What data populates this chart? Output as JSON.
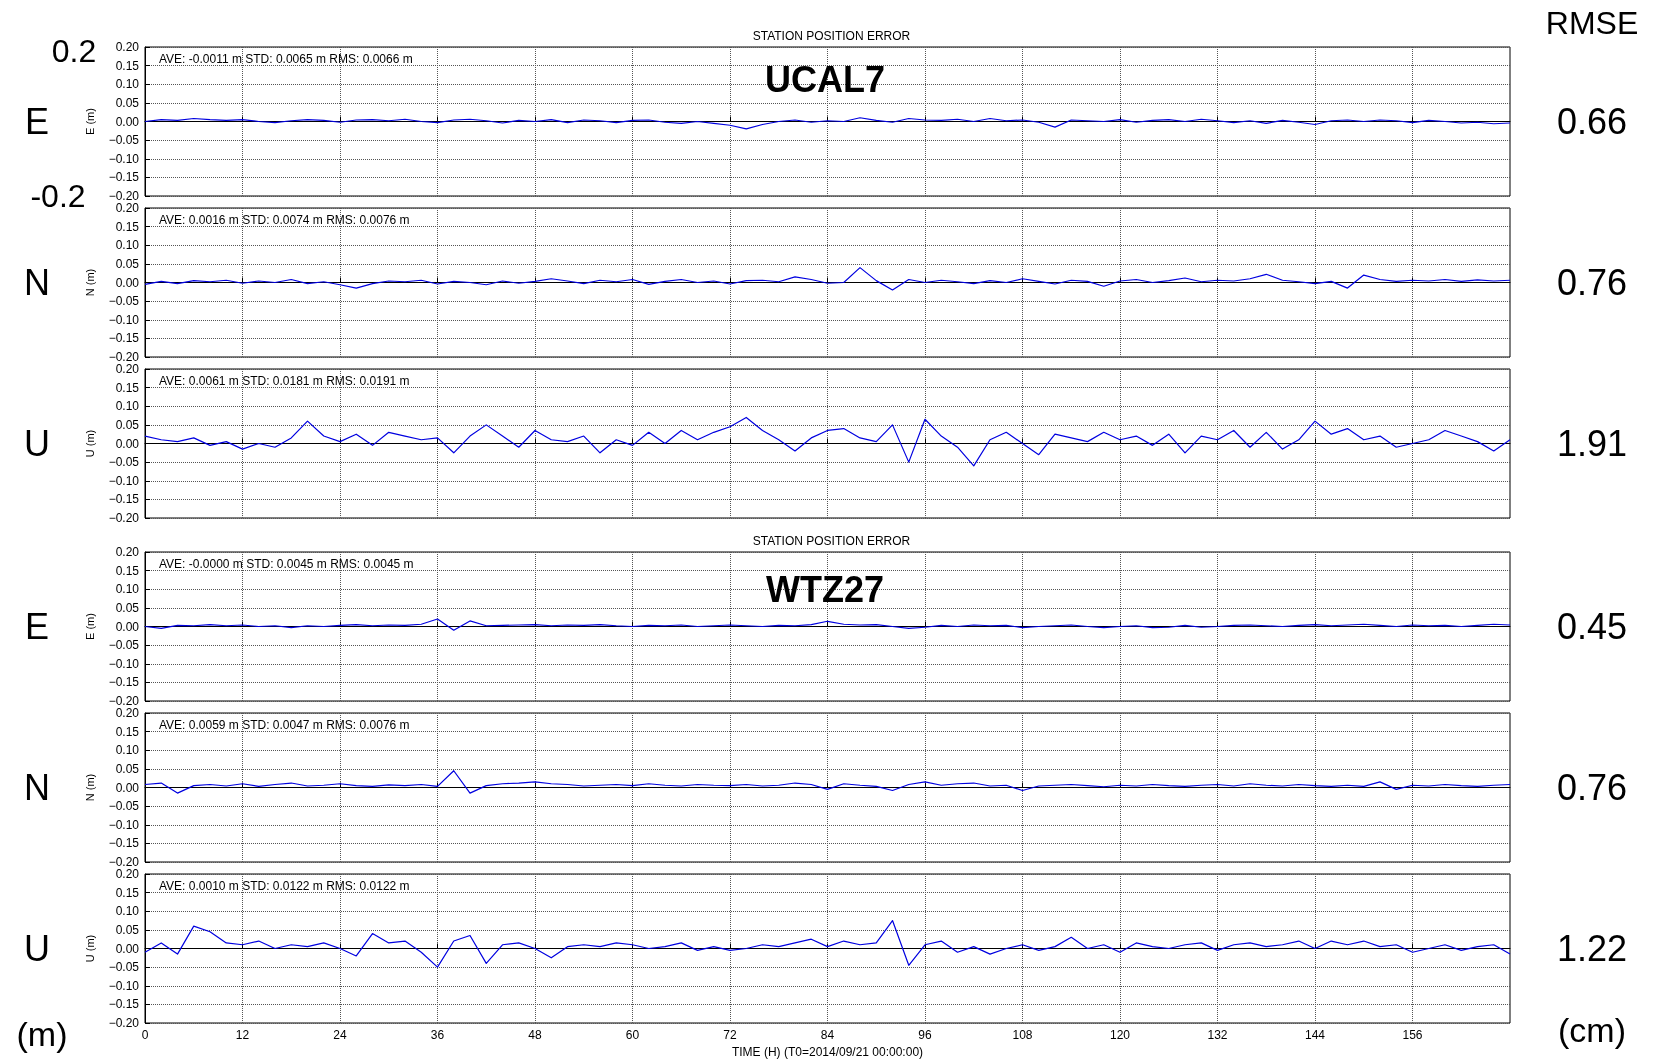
{
  "chart_data": [
    {
      "type": "line",
      "title": "STATION POSITION ERROR",
      "ylabel": "E (m)",
      "color": "#0000e0",
      "grid": true,
      "tick_labels": "y",
      "annotations": [
        "AVE: -0.0011 m STD: 0.0065 m RMS: 0.0066 m",
        "E",
        "0.66",
        "UCAL7",
        "RMSE",
        "0.2",
        "-0.2"
      ],
      "xlim": [
        0,
        168
      ],
      "xticks": [
        0,
        12,
        24,
        36,
        48,
        60,
        72,
        84,
        96,
        108,
        120,
        132,
        144,
        156
      ],
      "ylim": [
        -0.2,
        0.2
      ],
      "yticks": [
        {
          "value": -0.2,
          "label": "−0.20"
        },
        {
          "value": -0.15,
          "label": "−0.15"
        },
        {
          "value": -0.1,
          "label": "−0.10"
        },
        {
          "value": -0.05,
          "label": "−0.05"
        },
        {
          "value": 0,
          "label": "0.00"
        },
        {
          "value": 0.05,
          "label": "0.05"
        },
        {
          "value": 0.1,
          "label": "0.10"
        },
        {
          "value": 0.15,
          "label": "0.15"
        },
        {
          "value": 0.2,
          "label": "0.20"
        }
      ],
      "x": [
        0,
        2,
        4,
        6,
        8,
        10,
        12,
        14,
        16,
        18,
        20,
        22,
        24,
        26,
        28,
        30,
        32,
        34,
        36,
        38,
        40,
        42,
        44,
        46,
        48,
        50,
        52,
        54,
        56,
        58,
        60,
        62,
        64,
        66,
        68,
        70,
        72,
        74,
        76,
        78,
        80,
        82,
        84,
        86,
        88,
        90,
        92,
        94,
        96,
        98,
        100,
        102,
        104,
        106,
        108,
        110,
        112,
        114,
        116,
        118,
        120,
        122,
        124,
        126,
        128,
        130,
        132,
        134,
        136,
        138,
        140,
        142,
        144,
        146,
        148,
        150,
        152,
        154,
        156,
        158,
        160,
        162,
        164,
        166,
        168
      ],
      "values": [
        0.0,
        0.005,
        0.003,
        0.008,
        0.005,
        0.003,
        0.005,
        0.0,
        -0.003,
        0.002,
        0.005,
        0.003,
        -0.002,
        0.004,
        0.005,
        0.002,
        0.006,
        0.0,
        -0.003,
        0.004,
        0.006,
        0.002,
        -0.004,
        0.003,
        0.0,
        0.005,
        -0.003,
        0.004,
        0.002,
        -0.003,
        0.003,
        0.004,
        -0.002,
        -0.005,
        0.0,
        -0.005,
        -0.01,
        -0.02,
        -0.008,
        0.0,
        0.004,
        -0.002,
        0.002,
        0.0,
        0.01,
        0.003,
        -0.002,
        0.008,
        0.004,
        0.003,
        0.006,
        0.0,
        0.008,
        0.002,
        0.004,
        -0.002,
        -0.015,
        0.004,
        0.002,
        0.0,
        0.005,
        -0.002,
        0.003,
        0.005,
        0.0,
        0.006,
        0.002,
        -0.003,
        0.002,
        -0.005,
        0.003,
        -0.002,
        -0.008,
        0.002,
        0.004,
        0.0,
        0.004,
        0.002,
        -0.003,
        0.003,
        0.0,
        -0.004,
        -0.002,
        -0.006,
        -0.004
      ]
    },
    {
      "type": "line",
      "ylabel": "N (m)",
      "color": "#0000e0",
      "grid": true,
      "tick_labels": "y",
      "annotations": [
        "AVE: 0.0016 m STD: 0.0074 m RMS: 0.0076 m",
        "N",
        "0.76"
      ],
      "xlim": [
        0,
        168
      ],
      "xticks": [
        0,
        12,
        24,
        36,
        48,
        60,
        72,
        84,
        96,
        108,
        120,
        132,
        144,
        156
      ],
      "ylim": [
        -0.2,
        0.2
      ],
      "yticks": [
        {
          "value": -0.2,
          "label": "−0.20"
        },
        {
          "value": -0.15,
          "label": "−0.15"
        },
        {
          "value": -0.1,
          "label": "−0.10"
        },
        {
          "value": -0.05,
          "label": "−0.05"
        },
        {
          "value": 0,
          "label": "0.00"
        },
        {
          "value": 0.05,
          "label": "0.05"
        },
        {
          "value": 0.1,
          "label": "0.10"
        },
        {
          "value": 0.15,
          "label": "0.15"
        },
        {
          "value": 0.2,
          "label": "0.20"
        }
      ],
      "x": [
        0,
        2,
        4,
        6,
        8,
        10,
        12,
        14,
        16,
        18,
        20,
        22,
        24,
        26,
        28,
        30,
        32,
        34,
        36,
        38,
        40,
        42,
        44,
        46,
        48,
        50,
        52,
        54,
        56,
        58,
        60,
        62,
        64,
        66,
        68,
        70,
        72,
        74,
        76,
        78,
        80,
        82,
        84,
        86,
        88,
        90,
        92,
        94,
        96,
        98,
        100,
        102,
        104,
        106,
        108,
        110,
        112,
        114,
        116,
        118,
        120,
        122,
        124,
        126,
        128,
        130,
        132,
        134,
        136,
        138,
        140,
        142,
        144,
        146,
        148,
        150,
        152,
        154,
        156,
        158,
        160,
        162,
        164,
        166,
        168
      ],
      "values": [
        -0.005,
        0.003,
        -0.003,
        0.005,
        0.002,
        0.006,
        -0.002,
        0.004,
        0.0,
        0.008,
        -0.003,
        0.002,
        -0.006,
        -0.015,
        -0.003,
        0.004,
        0.002,
        0.006,
        -0.004,
        0.003,
        0.0,
        -0.006,
        0.004,
        -0.002,
        0.003,
        0.01,
        0.004,
        -0.003,
        0.006,
        0.002,
        0.008,
        -0.005,
        0.003,
        0.008,
        0.0,
        0.004,
        -0.004,
        0.005,
        0.006,
        0.002,
        0.015,
        0.008,
        -0.002,
        0.0,
        0.04,
        0.005,
        -0.02,
        0.008,
        0.0,
        0.006,
        0.002,
        -0.003,
        0.005,
        0.0,
        0.01,
        0.003,
        -0.004,
        0.006,
        0.003,
        -0.01,
        0.004,
        0.008,
        0.0,
        0.005,
        0.012,
        0.002,
        0.006,
        0.004,
        0.01,
        0.022,
        0.006,
        0.002,
        -0.003,
        0.003,
        -0.015,
        0.02,
        0.008,
        0.003,
        0.006,
        0.004,
        0.008,
        0.003,
        0.007,
        0.004,
        0.006
      ]
    },
    {
      "type": "line",
      "ylabel": "U (m)",
      "color": "#0000e0",
      "grid": true,
      "tick_labels": "y",
      "annotations": [
        "AVE: 0.0061 m STD: 0.0181 m RMS: 0.0191 m",
        "U",
        "1.91"
      ],
      "xlim": [
        0,
        168
      ],
      "xticks": [
        0,
        12,
        24,
        36,
        48,
        60,
        72,
        84,
        96,
        108,
        120,
        132,
        144,
        156
      ],
      "ylim": [
        -0.2,
        0.2
      ],
      "yticks": [
        {
          "value": -0.2,
          "label": "−0.20"
        },
        {
          "value": -0.15,
          "label": "−0.15"
        },
        {
          "value": -0.1,
          "label": "−0.10"
        },
        {
          "value": -0.05,
          "label": "−0.05"
        },
        {
          "value": 0,
          "label": "0.00"
        },
        {
          "value": 0.05,
          "label": "0.05"
        },
        {
          "value": 0.1,
          "label": "0.10"
        },
        {
          "value": 0.15,
          "label": "0.15"
        },
        {
          "value": 0.2,
          "label": "0.20"
        }
      ],
      "x": [
        0,
        2,
        4,
        6,
        8,
        10,
        12,
        14,
        16,
        18,
        20,
        22,
        24,
        26,
        28,
        30,
        32,
        34,
        36,
        38,
        40,
        42,
        44,
        46,
        48,
        50,
        52,
        54,
        56,
        58,
        60,
        62,
        64,
        66,
        68,
        70,
        72,
        74,
        76,
        78,
        80,
        82,
        84,
        86,
        88,
        90,
        92,
        94,
        96,
        98,
        100,
        102,
        104,
        106,
        108,
        110,
        112,
        114,
        116,
        118,
        120,
        122,
        124,
        126,
        128,
        130,
        132,
        134,
        136,
        138,
        140,
        142,
        144,
        146,
        148,
        150,
        152,
        154,
        156,
        158,
        160,
        162,
        164,
        166,
        168
      ],
      "values": [
        0.02,
        0.01,
        0.005,
        0.015,
        -0.005,
        0.005,
        -0.015,
        0.0,
        -0.01,
        0.015,
        0.06,
        0.02,
        0.005,
        0.025,
        -0.005,
        0.03,
        0.02,
        0.01,
        0.015,
        -0.025,
        0.02,
        0.05,
        0.02,
        -0.01,
        0.035,
        0.01,
        0.005,
        0.02,
        -0.025,
        0.01,
        -0.005,
        0.03,
        0.0,
        0.035,
        0.01,
        0.03,
        0.045,
        0.07,
        0.035,
        0.01,
        -0.02,
        0.015,
        0.035,
        0.04,
        0.015,
        0.005,
        0.05,
        -0.05,
        0.065,
        0.02,
        -0.01,
        -0.06,
        0.01,
        0.03,
        0.0,
        -0.03,
        0.025,
        0.015,
        0.005,
        0.03,
        0.01,
        0.02,
        -0.005,
        0.025,
        -0.025,
        0.02,
        0.01,
        0.035,
        -0.01,
        0.03,
        -0.015,
        0.01,
        0.06,
        0.025,
        0.04,
        0.01,
        0.02,
        -0.01,
        0.0,
        0.01,
        0.035,
        0.02,
        0.005,
        -0.02,
        0.01
      ]
    },
    {
      "type": "line",
      "title": "STATION POSITION ERROR",
      "ylabel": "E (m)",
      "color": "#0000e0",
      "grid": true,
      "tick_labels": "y",
      "annotations": [
        "AVE: -0.0000 m STD: 0.0045 m RMS: 0.0045 m",
        "E",
        "0.45",
        "WTZ27"
      ],
      "xlim": [
        0,
        168
      ],
      "xticks": [
        0,
        12,
        24,
        36,
        48,
        60,
        72,
        84,
        96,
        108,
        120,
        132,
        144,
        156
      ],
      "ylim": [
        -0.2,
        0.2
      ],
      "yticks": [
        {
          "value": -0.2,
          "label": "−0.20"
        },
        {
          "value": -0.15,
          "label": "−0.15"
        },
        {
          "value": -0.1,
          "label": "−0.10"
        },
        {
          "value": -0.05,
          "label": "−0.05"
        },
        {
          "value": 0,
          "label": "0.00"
        },
        {
          "value": 0.05,
          "label": "0.05"
        },
        {
          "value": 0.1,
          "label": "0.10"
        },
        {
          "value": 0.15,
          "label": "0.15"
        },
        {
          "value": 0.2,
          "label": "0.20"
        }
      ],
      "x": [
        0,
        2,
        4,
        6,
        8,
        10,
        12,
        14,
        16,
        18,
        20,
        22,
        24,
        26,
        28,
        30,
        32,
        34,
        36,
        38,
        40,
        42,
        44,
        46,
        48,
        50,
        52,
        54,
        56,
        58,
        60,
        62,
        64,
        66,
        68,
        70,
        72,
        74,
        76,
        78,
        80,
        82,
        84,
        86,
        88,
        90,
        92,
        94,
        96,
        98,
        100,
        102,
        104,
        106,
        108,
        110,
        112,
        114,
        116,
        118,
        120,
        122,
        124,
        126,
        128,
        130,
        132,
        134,
        136,
        138,
        140,
        142,
        144,
        146,
        148,
        150,
        152,
        154,
        156,
        158,
        160,
        162,
        164,
        166,
        168
      ],
      "values": [
        0.0,
        -0.005,
        0.003,
        0.002,
        0.005,
        0.002,
        0.004,
        0.0,
        0.002,
        -0.003,
        0.002,
        0.0,
        0.003,
        0.005,
        0.002,
        0.004,
        0.003,
        0.006,
        0.02,
        -0.01,
        0.015,
        0.002,
        0.003,
        0.004,
        0.005,
        0.002,
        0.004,
        0.003,
        0.005,
        0.002,
        0.0,
        0.003,
        0.002,
        0.004,
        0.0,
        0.002,
        0.004,
        0.002,
        0.0,
        0.003,
        0.002,
        0.005,
        0.014,
        0.006,
        0.004,
        0.005,
        0.0,
        -0.005,
        -0.002,
        0.003,
        0.0,
        0.004,
        0.002,
        0.003,
        -0.003,
        0.0,
        0.002,
        0.004,
        0.0,
        -0.003,
        0.0,
        0.002,
        -0.003,
        -0.002,
        0.003,
        -0.002,
        0.0,
        0.003,
        0.004,
        0.002,
        0.0,
        0.003,
        0.005,
        0.002,
        0.004,
        0.006,
        0.003,
        0.0,
        0.004,
        0.002,
        0.003,
        0.0,
        0.003,
        0.006,
        0.004
      ]
    },
    {
      "type": "line",
      "ylabel": "N (m)",
      "color": "#0000e0",
      "grid": true,
      "tick_labels": "y",
      "annotations": [
        "AVE: 0.0059 m STD: 0.0047 m RMS: 0.0076 m",
        "N",
        "0.76"
      ],
      "xlim": [
        0,
        168
      ],
      "xticks": [
        0,
        12,
        24,
        36,
        48,
        60,
        72,
        84,
        96,
        108,
        120,
        132,
        144,
        156
      ],
      "ylim": [
        -0.2,
        0.2
      ],
      "yticks": [
        {
          "value": -0.2,
          "label": "−0.20"
        },
        {
          "value": -0.15,
          "label": "−0.15"
        },
        {
          "value": -0.1,
          "label": "−0.10"
        },
        {
          "value": -0.05,
          "label": "−0.05"
        },
        {
          "value": 0,
          "label": "0.00"
        },
        {
          "value": 0.05,
          "label": "0.05"
        },
        {
          "value": 0.1,
          "label": "0.10"
        },
        {
          "value": 0.15,
          "label": "0.15"
        },
        {
          "value": 0.2,
          "label": "0.20"
        }
      ],
      "x": [
        0,
        2,
        4,
        6,
        8,
        10,
        12,
        14,
        16,
        18,
        20,
        22,
        24,
        26,
        28,
        30,
        32,
        34,
        36,
        38,
        40,
        42,
        44,
        46,
        48,
        50,
        52,
        54,
        56,
        58,
        60,
        62,
        64,
        66,
        68,
        70,
        72,
        74,
        76,
        78,
        80,
        82,
        84,
        86,
        88,
        90,
        92,
        94,
        96,
        98,
        100,
        102,
        104,
        106,
        108,
        110,
        112,
        114,
        116,
        118,
        120,
        122,
        124,
        126,
        128,
        130,
        132,
        134,
        136,
        138,
        140,
        142,
        144,
        146,
        148,
        150,
        152,
        154,
        156,
        158,
        160,
        162,
        164,
        166,
        168
      ],
      "values": [
        0.008,
        0.012,
        -0.015,
        0.005,
        0.008,
        0.004,
        0.01,
        0.003,
        0.008,
        0.012,
        0.004,
        0.006,
        0.01,
        0.005,
        0.003,
        0.007,
        0.005,
        0.008,
        0.003,
        0.045,
        -0.015,
        0.005,
        0.01,
        0.012,
        0.015,
        0.01,
        0.008,
        0.004,
        0.006,
        0.008,
        0.005,
        0.01,
        0.006,
        0.004,
        0.008,
        0.006,
        0.005,
        0.008,
        0.004,
        0.006,
        0.012,
        0.008,
        -0.005,
        0.01,
        0.006,
        0.003,
        -0.008,
        0.008,
        0.015,
        0.006,
        0.01,
        0.012,
        0.004,
        0.006,
        -0.008,
        0.004,
        0.006,
        0.008,
        0.005,
        0.002,
        0.006,
        0.004,
        0.008,
        0.005,
        0.003,
        0.006,
        0.008,
        0.004,
        0.01,
        0.006,
        0.004,
        0.008,
        0.005,
        0.003,
        0.006,
        0.003,
        0.015,
        -0.005,
        0.006,
        0.004,
        0.008,
        0.005,
        0.003,
        0.006,
        0.008
      ]
    },
    {
      "type": "line",
      "ylabel": "U (m)",
      "xlabel": "TIME (H) (T0=2014/09/21 00:00:00)",
      "color": "#0000e0",
      "grid": true,
      "annotations": [
        "AVE: 0.0010 m STD: 0.0122 m RMS: 0.0122 m",
        "U",
        "1.22",
        "(m)",
        "(cm)"
      ],
      "xlim": [
        0,
        168
      ],
      "xticks": [
        0,
        12,
        24,
        36,
        48,
        60,
        72,
        84,
        96,
        108,
        120,
        132,
        144,
        156
      ],
      "ylim": [
        -0.2,
        0.2
      ],
      "yticks": [
        {
          "value": -0.2,
          "label": "−0.20"
        },
        {
          "value": -0.15,
          "label": "−0.15"
        },
        {
          "value": -0.1,
          "label": "−0.10"
        },
        {
          "value": -0.05,
          "label": "−0.05"
        },
        {
          "value": 0,
          "label": "0.00"
        },
        {
          "value": 0.05,
          "label": "0.05"
        },
        {
          "value": 0.1,
          "label": "0.10"
        },
        {
          "value": 0.15,
          "label": "0.15"
        },
        {
          "value": 0.2,
          "label": "0.20"
        }
      ],
      "x": [
        0,
        2,
        4,
        6,
        8,
        10,
        12,
        14,
        16,
        18,
        20,
        22,
        24,
        26,
        28,
        30,
        32,
        34,
        36,
        38,
        40,
        42,
        44,
        46,
        48,
        50,
        52,
        54,
        56,
        58,
        60,
        62,
        64,
        66,
        68,
        70,
        72,
        74,
        76,
        78,
        80,
        82,
        84,
        86,
        88,
        90,
        92,
        94,
        96,
        98,
        100,
        102,
        104,
        106,
        108,
        110,
        112,
        114,
        116,
        118,
        120,
        122,
        124,
        126,
        128,
        130,
        132,
        134,
        136,
        138,
        140,
        142,
        144,
        146,
        148,
        150,
        152,
        154,
        156,
        158,
        160,
        162,
        164,
        166,
        168
      ],
      "values": [
        -0.01,
        0.015,
        -0.015,
        0.06,
        0.045,
        0.015,
        0.01,
        0.02,
        0.0,
        0.01,
        0.005,
        0.015,
        0.0,
        -0.02,
        0.04,
        0.015,
        0.02,
        -0.01,
        -0.05,
        0.02,
        0.035,
        -0.04,
        0.01,
        0.015,
        0.0,
        -0.025,
        0.005,
        0.01,
        0.005,
        0.015,
        0.01,
        0.0,
        0.005,
        0.015,
        -0.005,
        0.005,
        -0.005,
        0.0,
        0.01,
        0.005,
        0.015,
        0.025,
        0.005,
        0.02,
        0.01,
        0.015,
        0.075,
        -0.045,
        0.01,
        0.02,
        -0.01,
        0.005,
        -0.015,
        0.0,
        0.01,
        -0.005,
        0.005,
        0.03,
        0.0,
        0.01,
        -0.01,
        0.015,
        0.005,
        0.0,
        0.01,
        0.015,
        -0.005,
        0.01,
        0.015,
        0.005,
        0.01,
        0.02,
        0.0,
        0.02,
        0.01,
        0.02,
        0.005,
        0.01,
        -0.01,
        0.0,
        0.01,
        -0.005,
        0.005,
        0.01,
        -0.015
      ]
    }
  ]
}
